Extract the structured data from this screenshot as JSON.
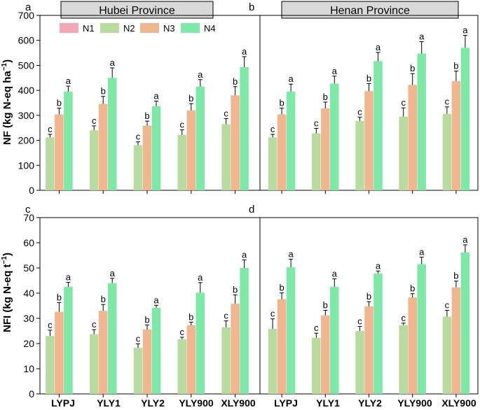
{
  "chart_data": {
    "type": "bar",
    "series_names": [
      "N1",
      "N2",
      "N3",
      "N4"
    ],
    "colors": {
      "N1": "#f4a7b4",
      "N2": "#b8dba0",
      "N3": "#f0b690",
      "N4": "#7ee8a6"
    },
    "categories": [
      "LYPJ",
      "YLY1",
      "YLY2",
      "YLY900",
      "XLY900"
    ],
    "strips": [
      "Hubei Province",
      "Henan Province"
    ],
    "panels": [
      {
        "letter": "a",
        "row": 0,
        "col": 0,
        "ylabel_main": "NF (kg N-eq ha",
        "ylabel_sup": "−1",
        "ylabel_end": ")",
        "ylim": [
          0,
          700
        ],
        "yticks": [
          "0",
          "100",
          "200",
          "300",
          "400",
          "500",
          "600",
          "700"
        ],
        "series": [
          {
            "name": "N2",
            "values": [
              212,
              240,
              181,
              222,
              265
            ],
            "errors": [
              12,
              18,
              13,
              20,
              22
            ],
            "labels": [
              "c",
              "c",
              "c",
              "c",
              "c"
            ]
          },
          {
            "name": "N3",
            "values": [
              304,
              346,
              259,
              320,
              380
            ],
            "errors": [
              25,
              30,
              18,
              27,
              35
            ],
            "labels": [
              "b",
              "b",
              "b",
              "b",
              "b"
            ]
          },
          {
            "name": "N4",
            "values": [
              395,
              450,
              337,
              415,
              493
            ],
            "errors": [
              22,
              40,
              20,
              28,
              42
            ],
            "labels": [
              "a",
              "a",
              "a",
              "a",
              "a"
            ]
          }
        ]
      },
      {
        "letter": "b",
        "row": 0,
        "col": 1,
        "ylim": [
          0,
          700
        ],
        "series": [
          {
            "name": "N2",
            "values": [
              212,
              228,
              278,
              295,
              306
            ],
            "errors": [
              12,
              20,
              15,
              35,
              28
            ],
            "labels": [
              "c",
              "c",
              "c",
              "c",
              "c"
            ]
          },
          {
            "name": "N3",
            "values": [
              304,
              328,
              397,
              422,
              437
            ],
            "errors": [
              25,
              25,
              30,
              45,
              40
            ],
            "labels": [
              "b",
              "b",
              "b",
              "b",
              "b"
            ]
          },
          {
            "name": "N4",
            "values": [
              395,
              427,
              517,
              547,
              570
            ],
            "errors": [
              30,
              30,
              35,
              48,
              50
            ],
            "labels": [
              "a",
              "a",
              "a",
              "a",
              "a"
            ]
          }
        ]
      },
      {
        "letter": "c",
        "row": 1,
        "col": 0,
        "ylabel_main": "NFI (kg N-eq t",
        "ylabel_sup": "−1",
        "ylabel_end": ")",
        "ylim": [
          0,
          70
        ],
        "yticks": [
          "0",
          "10",
          "20",
          "30",
          "40",
          "50",
          "60",
          "70"
        ],
        "series": [
          {
            "name": "N2",
            "values": [
              23.0,
              23.7,
              18.3,
              21.7,
              26.5
            ],
            "errors": [
              2.3,
              1.8,
              1.6,
              0.8,
              2.5
            ],
            "labels": [
              "c",
              "c",
              "c",
              "c",
              "c"
            ]
          },
          {
            "name": "N3",
            "values": [
              32.6,
              33.0,
              25.6,
              27.3,
              35.8
            ],
            "errors": [
              3.7,
              2.5,
              1.8,
              1.2,
              3.5
            ],
            "labels": [
              "b",
              "b",
              "b",
              "b",
              "b"
            ]
          },
          {
            "name": "N4",
            "values": [
              42.5,
              44.0,
              34.2,
              40.2,
              50.0
            ],
            "errors": [
              1.8,
              1.9,
              1.0,
              4.0,
              3.2
            ],
            "labels": [
              "a",
              "a",
              "a",
              "a",
              "a"
            ]
          }
        ]
      },
      {
        "letter": "d",
        "row": 1,
        "col": 1,
        "ylim": [
          0,
          70
        ],
        "series": [
          {
            "name": "N2",
            "values": [
              25.8,
              22.3,
              25.0,
              27.3,
              30.7
            ],
            "errors": [
              4.0,
              1.8,
              1.8,
              0.8,
              2.5
            ],
            "labels": [
              "c",
              "c",
              "c",
              "c",
              "c"
            ]
          },
          {
            "name": "N3",
            "values": [
              37.6,
              31.2,
              34.8,
              38.3,
              42.3
            ],
            "errors": [
              2.5,
              2.0,
              1.8,
              1.5,
              2.5
            ],
            "labels": [
              "b",
              "b",
              "b",
              "b",
              "b"
            ]
          },
          {
            "name": "N4",
            "values": [
              50.3,
              42.5,
              47.8,
              51.5,
              56.2
            ],
            "errors": [
              3.2,
              3.2,
              1.0,
              2.8,
              3.0
            ],
            "labels": [
              "a",
              "a",
              "a",
              "a",
              "a"
            ]
          }
        ]
      }
    ]
  }
}
